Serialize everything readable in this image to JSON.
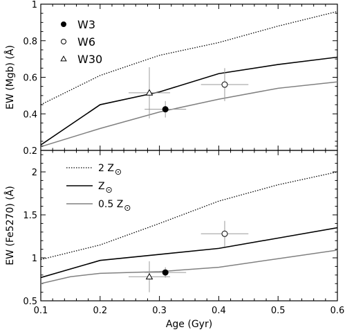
{
  "chart_data": [
    {
      "type": "line",
      "ylabel": "EW (Mgb) (Å)",
      "xlim": [
        0.1,
        0.6
      ],
      "ylim": [
        0.2,
        1.0
      ],
      "xticks": [
        0.1,
        0.2,
        0.3,
        0.4,
        0.5,
        0.6
      ],
      "yticks": [
        {
          "value": 0.2,
          "label": "0.2"
        },
        {
          "value": 0.4,
          "label": "0.4"
        },
        {
          "value": 0.6,
          "label": "0.6"
        },
        {
          "value": 0.8,
          "label": "0.8"
        },
        {
          "value": 1.0,
          "label": "1"
        }
      ],
      "series": [
        {
          "style": "dotted",
          "x": [
            0.1,
            0.2,
            0.3,
            0.4,
            0.5,
            0.6
          ],
          "y": [
            0.45,
            0.61,
            0.72,
            0.79,
            0.88,
            0.96
          ]
        },
        {
          "style": "solid",
          "x": [
            0.1,
            0.2,
            0.3,
            0.4,
            0.5,
            0.6
          ],
          "y": [
            0.23,
            0.45,
            0.52,
            0.62,
            0.67,
            0.71
          ]
        },
        {
          "style": "gray",
          "x": [
            0.1,
            0.2,
            0.3,
            0.4,
            0.5,
            0.6
          ],
          "y": [
            0.22,
            0.32,
            0.41,
            0.48,
            0.54,
            0.575
          ]
        }
      ],
      "points": [
        {
          "name": "W3",
          "marker": "filled-circle",
          "x": 0.31,
          "y": 0.425,
          "xerr": 0.035,
          "yerr": 0.045
        },
        {
          "name": "W6",
          "marker": "open-circle",
          "x": 0.41,
          "y": 0.56,
          "xerr": 0.04,
          "yerr": 0.09
        },
        {
          "name": "W30",
          "marker": "open-triangle",
          "x": 0.283,
          "y": 0.515,
          "xerr": 0.035,
          "yerr": 0.14
        }
      ],
      "legend": [
        {
          "marker": "filled-circle",
          "label": "W3"
        },
        {
          "marker": "open-circle",
          "label": "W6"
        },
        {
          "marker": "open-triangle",
          "label": "W30"
        }
      ]
    },
    {
      "type": "line",
      "xlabel": "Age (Gyr)",
      "ylabel": "EW (Fe5270) (Å)",
      "xlim": [
        0.1,
        0.6
      ],
      "ylim": [
        0.5,
        2.25
      ],
      "xticks": [
        0.1,
        0.2,
        0.3,
        0.4,
        0.5,
        0.6
      ],
      "xtick_labels": [
        "0.1",
        "0.2",
        "0.3",
        "0.4",
        "0.5",
        "0.6"
      ],
      "yticks": [
        {
          "value": 0.5,
          "label": "0.5"
        },
        {
          "value": 1.0,
          "label": "1"
        },
        {
          "value": 1.5,
          "label": "1.5"
        },
        {
          "value": 2.0,
          "label": "2"
        }
      ],
      "series": [
        {
          "style": "dotted",
          "x": [
            0.1,
            0.2,
            0.3,
            0.4,
            0.5,
            0.6
          ],
          "y": [
            0.98,
            1.15,
            1.4,
            1.66,
            1.85,
            2.0
          ]
        },
        {
          "style": "solid",
          "x": [
            0.1,
            0.2,
            0.3,
            0.4,
            0.5,
            0.6
          ],
          "y": [
            0.77,
            0.97,
            1.04,
            1.11,
            1.23,
            1.35
          ]
        },
        {
          "style": "gray",
          "x": [
            0.1,
            0.15,
            0.2,
            0.3,
            0.4,
            0.5,
            0.6
          ],
          "y": [
            0.7,
            0.78,
            0.82,
            0.84,
            0.89,
            0.99,
            1.09
          ]
        }
      ],
      "points": [
        {
          "name": "W3",
          "marker": "filled-circle",
          "x": 0.31,
          "y": 0.83,
          "xerr": 0.035,
          "yerr": 0.06
        },
        {
          "name": "W6",
          "marker": "open-circle",
          "x": 0.41,
          "y": 1.28,
          "xerr": 0.04,
          "yerr": 0.15
        },
        {
          "name": "W30",
          "marker": "open-triangle",
          "x": 0.283,
          "y": 0.78,
          "xerr": 0.035,
          "yerr": 0.18
        }
      ],
      "legend": [
        {
          "style": "dotted",
          "label": "2 Z",
          "sun": true
        },
        {
          "style": "solid",
          "label": "Z",
          "sun": true
        },
        {
          "style": "gray",
          "label": "0.5 Z",
          "sun": true
        }
      ]
    }
  ]
}
